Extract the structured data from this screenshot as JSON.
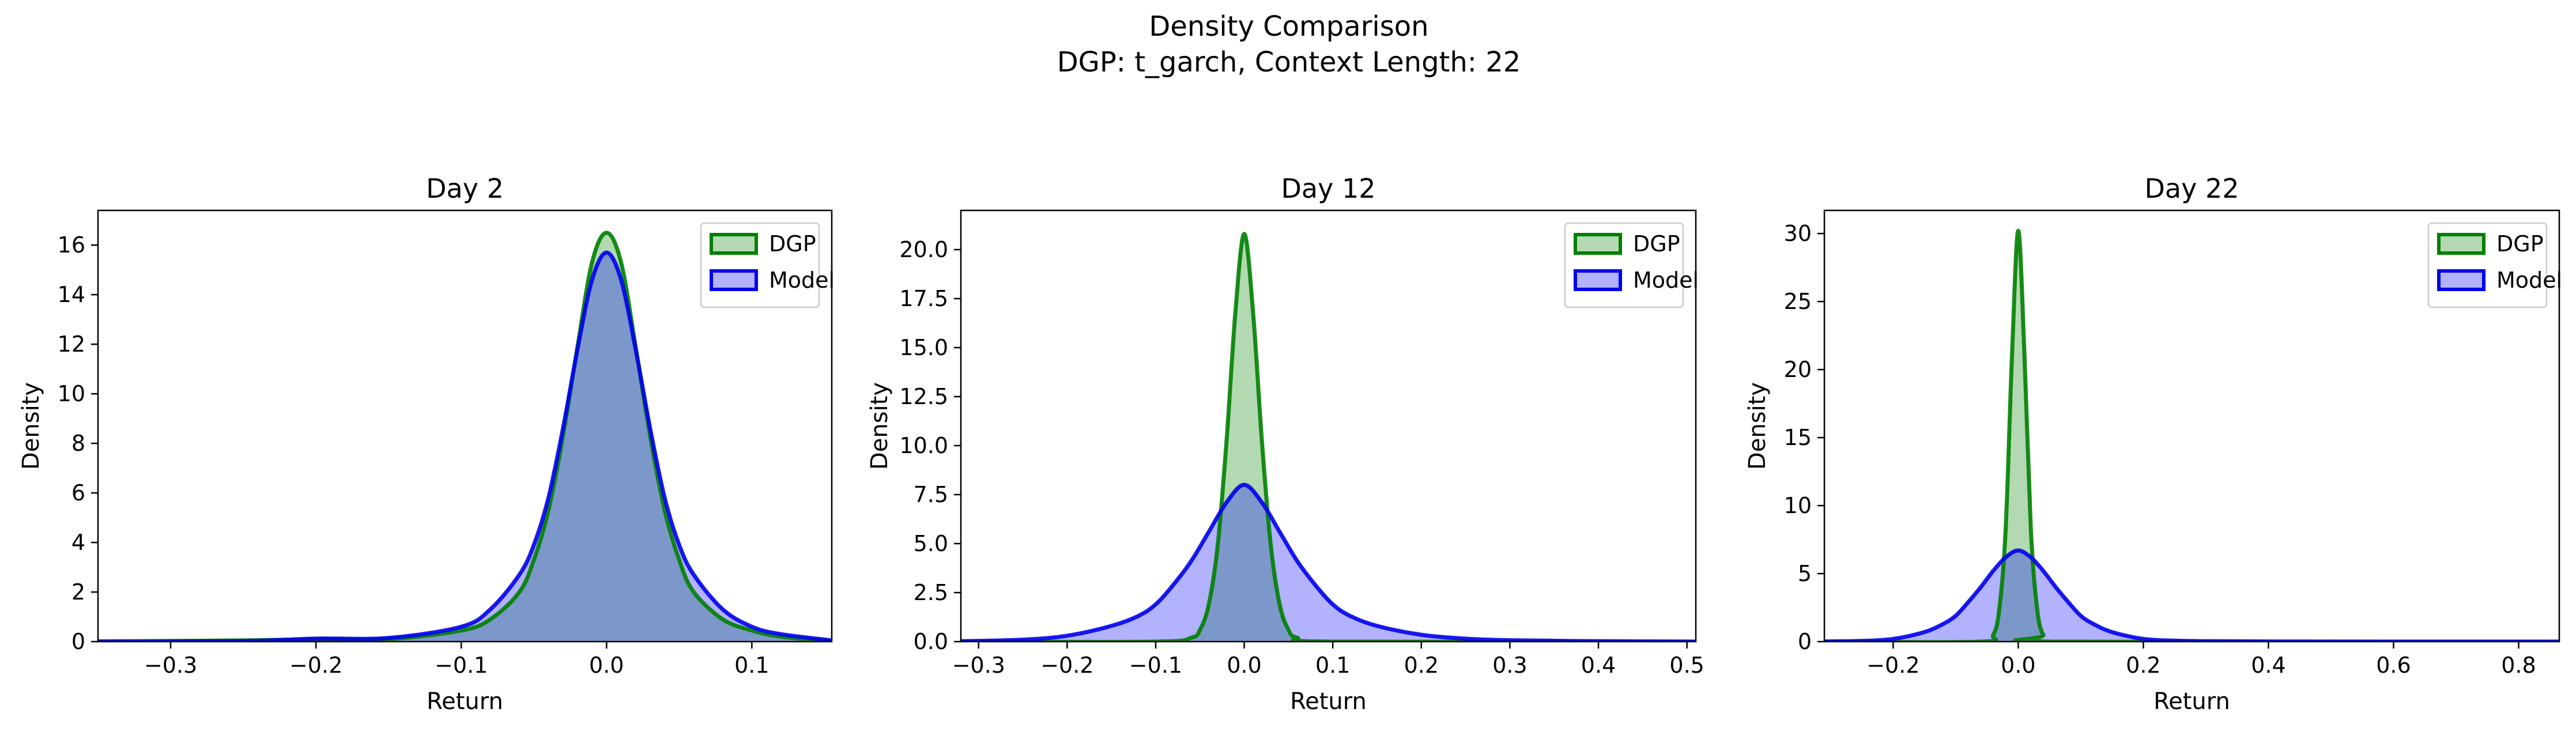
{
  "figure": {
    "suptitle_line1": "Density Comparison",
    "suptitle_line2": "DGP: t_garch, Context Length: 22"
  },
  "colors": {
    "dgp_line": "#008000",
    "dgp_fill": "#008000",
    "model_line": "#0000ee",
    "model_fill": "#0000ff",
    "axes": "#000000"
  },
  "chart_data": [
    {
      "type": "area",
      "title": "Day 2",
      "xlabel": "Return",
      "ylabel": "Density",
      "xlim": [
        -0.35,
        0.155
      ],
      "ylim": [
        0,
        17.4
      ],
      "xticks": [
        -0.3,
        -0.2,
        -0.1,
        0.0,
        0.1
      ],
      "xtick_labels": [
        "−0.3",
        "−0.2",
        "−0.1",
        "0.0",
        "0.1"
      ],
      "yticks": [
        0,
        2,
        4,
        6,
        8,
        10,
        12,
        14,
        16
      ],
      "ytick_labels": [
        "0",
        "2",
        "4",
        "6",
        "8",
        "10",
        "12",
        "14",
        "16"
      ],
      "legend_position": "upper right",
      "series": [
        {
          "name": "DGP",
          "peak": 16.5,
          "center": 0.0,
          "x": [
            -0.35,
            -0.25,
            -0.2,
            -0.15,
            -0.1,
            -0.08,
            -0.06,
            -0.05,
            -0.04,
            -0.03,
            -0.02,
            -0.01,
            0.0,
            0.01,
            0.02,
            0.03,
            0.04,
            0.05,
            0.06,
            0.08,
            0.1,
            0.12,
            0.155
          ],
          "y": [
            0.01,
            0.05,
            0.1,
            0.1,
            0.45,
            0.9,
            2.0,
            3.3,
            5.3,
            8.3,
            11.9,
            15.3,
            16.5,
            15.3,
            11.9,
            8.3,
            5.3,
            3.3,
            2.0,
            0.9,
            0.45,
            0.2,
            0.02
          ]
        },
        {
          "name": "Model",
          "peak": 15.7,
          "center": 0.0,
          "x": [
            -0.35,
            -0.25,
            -0.2,
            -0.15,
            -0.1,
            -0.08,
            -0.06,
            -0.05,
            -0.04,
            -0.03,
            -0.02,
            -0.01,
            0.0,
            0.01,
            0.02,
            0.03,
            0.04,
            0.05,
            0.06,
            0.08,
            0.1,
            0.12,
            0.155
          ],
          "y": [
            0.0,
            0.02,
            0.12,
            0.15,
            0.6,
            1.3,
            2.7,
            3.9,
            5.8,
            8.6,
            11.8,
            14.6,
            15.7,
            14.6,
            11.8,
            8.6,
            5.8,
            3.9,
            2.7,
            1.3,
            0.6,
            0.3,
            0.05
          ]
        }
      ]
    },
    {
      "type": "area",
      "title": "Day 12",
      "xlabel": "Return",
      "ylabel": "Density",
      "xlim": [
        -0.32,
        0.51
      ],
      "ylim": [
        0,
        22
      ],
      "xticks": [
        -0.3,
        -0.2,
        -0.1,
        0.0,
        0.1,
        0.2,
        0.3,
        0.4,
        0.5
      ],
      "xtick_labels": [
        "−0.3",
        "−0.2",
        "−0.1",
        "0.0",
        "0.1",
        "0.2",
        "0.3",
        "0.4",
        "0.5"
      ],
      "yticks": [
        0,
        2.5,
        5,
        7.5,
        10,
        12.5,
        15,
        17.5,
        20
      ],
      "ytick_labels": [
        "0.0",
        "2.5",
        "5.0",
        "7.5",
        "10.0",
        "12.5",
        "15.0",
        "17.5",
        "20.0"
      ],
      "legend_position": "upper right",
      "series": [
        {
          "name": "DGP",
          "peak": 20.8,
          "center": 0.0,
          "x": [
            -0.32,
            -0.1,
            -0.06,
            -0.05,
            -0.04,
            -0.03,
            -0.02,
            -0.01,
            0.0,
            0.01,
            0.02,
            0.03,
            0.04,
            0.05,
            0.06,
            0.1,
            0.51
          ],
          "y": [
            0.0,
            0.0,
            0.2,
            0.6,
            1.9,
            4.9,
            10.2,
            16.8,
            20.8,
            16.8,
            10.2,
            4.9,
            1.9,
            0.6,
            0.2,
            0.0,
            0.0
          ]
        },
        {
          "name": "Model",
          "peak": 8.0,
          "center": 0.0,
          "x": [
            -0.32,
            -0.25,
            -0.2,
            -0.15,
            -0.12,
            -0.1,
            -0.08,
            -0.06,
            -0.04,
            -0.02,
            0.0,
            0.02,
            0.04,
            0.06,
            0.08,
            0.1,
            0.12,
            0.15,
            0.2,
            0.25,
            0.3,
            0.4,
            0.51
          ],
          "y": [
            0.02,
            0.1,
            0.3,
            0.8,
            1.3,
            1.9,
            2.9,
            4.1,
            5.6,
            7.1,
            8.0,
            7.1,
            5.6,
            4.1,
            2.9,
            1.9,
            1.3,
            0.8,
            0.35,
            0.15,
            0.07,
            0.02,
            0.0
          ]
        }
      ]
    },
    {
      "type": "area",
      "title": "Day 22",
      "xlabel": "Return",
      "ylabel": "Density",
      "xlim": [
        -0.31,
        0.865
      ],
      "ylim": [
        0,
        31.7
      ],
      "xticks": [
        -0.2,
        0.0,
        0.2,
        0.4,
        0.6,
        0.8
      ],
      "xtick_labels": [
        "−0.2",
        "0.0",
        "0.2",
        "0.4",
        "0.6",
        "0.8"
      ],
      "yticks": [
        0,
        5,
        10,
        15,
        20,
        25,
        30
      ],
      "ytick_labels": [
        "0",
        "5",
        "10",
        "15",
        "20",
        "25",
        "30"
      ],
      "legend_position": "upper right",
      "series": [
        {
          "name": "DGP",
          "peak": 30.2,
          "center": 0.0,
          "x": [
            -0.31,
            -0.06,
            -0.04,
            -0.03,
            -0.02,
            -0.01,
            0.0,
            0.01,
            0.02,
            0.03,
            0.04,
            0.06,
            0.865
          ],
          "y": [
            0.0,
            0.0,
            0.5,
            2.5,
            8.4,
            21.0,
            30.2,
            21.0,
            8.4,
            2.5,
            0.5,
            0.0,
            0.0
          ]
        },
        {
          "name": "Model",
          "peak": 6.7,
          "center": 0.0,
          "x": [
            -0.31,
            -0.25,
            -0.2,
            -0.15,
            -0.12,
            -0.1,
            -0.08,
            -0.06,
            -0.04,
            -0.02,
            0.0,
            0.02,
            0.04,
            0.06,
            0.08,
            0.1,
            0.12,
            0.15,
            0.2,
            0.25,
            0.3,
            0.4,
            0.6,
            0.865
          ],
          "y": [
            0.01,
            0.05,
            0.2,
            0.7,
            1.3,
            1.9,
            2.9,
            4.0,
            5.2,
            6.2,
            6.7,
            6.2,
            5.2,
            4.0,
            2.9,
            1.9,
            1.3,
            0.7,
            0.2,
            0.07,
            0.03,
            0.01,
            0.0,
            0.0
          ]
        }
      ]
    }
  ]
}
